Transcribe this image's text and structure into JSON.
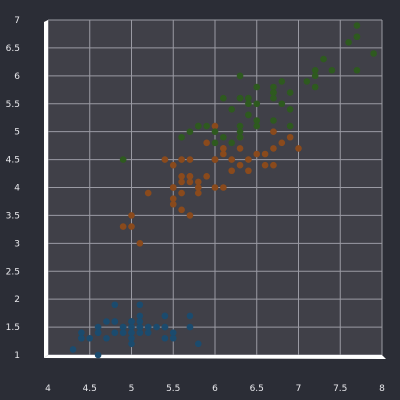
{
  "chart_data": {
    "type": "scatter",
    "title": "",
    "xlabel": "",
    "ylabel": "",
    "xlim": [
      4,
      8
    ],
    "ylim": [
      1,
      7
    ],
    "x_ticks": [
      4,
      4.5,
      5,
      5.5,
      6,
      6.5,
      7,
      7.5,
      8
    ],
    "x_tick_labels": [
      "4",
      "4.5",
      "5",
      "5.5",
      "6",
      "6.5",
      "7",
      "7.5",
      "8"
    ],
    "y_ticks": [
      1,
      1.5,
      2,
      2.5,
      3,
      3.5,
      4,
      4.5,
      5,
      5.5,
      6,
      6.5,
      7
    ],
    "y_tick_labels": [
      "1",
      "1.5",
      "2",
      "2.5",
      "3",
      "3.5",
      "4",
      "4.5",
      "5",
      "5.5",
      "6",
      "6.5",
      "7"
    ],
    "grid": true,
    "legend": "none",
    "colors": {
      "background": "#2b2d36",
      "plot_background": "#404048",
      "grid": "#9a9aa3",
      "axis": "#ffffff",
      "tick_text": "#e8e8ec"
    },
    "series": [
      {
        "color": "#1b4b6e",
        "points": [
          [
            5.1,
            1.4
          ],
          [
            4.9,
            1.4
          ],
          [
            4.7,
            1.3
          ],
          [
            4.6,
            1.5
          ],
          [
            5.0,
            1.4
          ],
          [
            5.4,
            1.7
          ],
          [
            4.6,
            1.4
          ],
          [
            5.0,
            1.5
          ],
          [
            4.4,
            1.4
          ],
          [
            4.9,
            1.5
          ],
          [
            5.4,
            1.5
          ],
          [
            4.8,
            1.6
          ],
          [
            4.8,
            1.4
          ],
          [
            4.3,
            1.1
          ],
          [
            5.8,
            1.2
          ],
          [
            5.7,
            1.5
          ],
          [
            5.4,
            1.3
          ],
          [
            5.1,
            1.4
          ],
          [
            5.7,
            1.7
          ],
          [
            5.1,
            1.5
          ],
          [
            5.4,
            1.7
          ],
          [
            5.1,
            1.5
          ],
          [
            4.6,
            1.0
          ],
          [
            5.1,
            1.7
          ],
          [
            4.8,
            1.9
          ],
          [
            5.0,
            1.6
          ],
          [
            5.0,
            1.6
          ],
          [
            5.2,
            1.5
          ],
          [
            5.2,
            1.4
          ],
          [
            4.7,
            1.6
          ],
          [
            4.8,
            1.6
          ],
          [
            5.4,
            1.5
          ],
          [
            5.2,
            1.5
          ],
          [
            5.5,
            1.4
          ],
          [
            4.9,
            1.5
          ],
          [
            5.0,
            1.2
          ],
          [
            5.5,
            1.3
          ],
          [
            4.9,
            1.4
          ],
          [
            4.4,
            1.3
          ],
          [
            5.1,
            1.5
          ],
          [
            5.0,
            1.3
          ],
          [
            4.5,
            1.3
          ],
          [
            4.4,
            1.3
          ],
          [
            5.0,
            1.6
          ],
          [
            5.1,
            1.9
          ],
          [
            4.8,
            1.4
          ],
          [
            5.1,
            1.6
          ],
          [
            4.6,
            1.4
          ],
          [
            5.3,
            1.5
          ],
          [
            5.0,
            1.4
          ]
        ]
      },
      {
        "color": "#8a4a1c",
        "points": [
          [
            7.0,
            4.7
          ],
          [
            6.4,
            4.5
          ],
          [
            6.9,
            4.9
          ],
          [
            5.5,
            4.0
          ],
          [
            6.5,
            4.6
          ],
          [
            5.7,
            4.5
          ],
          [
            6.3,
            4.7
          ],
          [
            4.9,
            3.3
          ],
          [
            6.6,
            4.6
          ],
          [
            5.2,
            3.9
          ],
          [
            5.0,
            3.5
          ],
          [
            5.9,
            4.2
          ],
          [
            6.0,
            4.0
          ],
          [
            6.1,
            4.7
          ],
          [
            5.6,
            3.6
          ],
          [
            6.7,
            4.4
          ],
          [
            5.6,
            4.5
          ],
          [
            5.8,
            4.1
          ],
          [
            6.2,
            4.5
          ],
          [
            5.6,
            3.9
          ],
          [
            5.9,
            4.8
          ],
          [
            6.1,
            4.0
          ],
          [
            6.3,
            4.9
          ],
          [
            6.1,
            4.7
          ],
          [
            6.4,
            4.3
          ],
          [
            6.6,
            4.4
          ],
          [
            6.8,
            4.8
          ],
          [
            6.7,
            5.0
          ],
          [
            6.0,
            4.5
          ],
          [
            5.7,
            3.5
          ],
          [
            5.5,
            3.8
          ],
          [
            5.5,
            3.7
          ],
          [
            5.8,
            3.9
          ],
          [
            6.0,
            5.1
          ],
          [
            5.4,
            4.5
          ],
          [
            6.0,
            4.5
          ],
          [
            6.7,
            4.7
          ],
          [
            6.3,
            4.4
          ],
          [
            5.6,
            4.1
          ],
          [
            5.5,
            4.0
          ],
          [
            5.5,
            4.4
          ],
          [
            6.1,
            4.6
          ],
          [
            5.8,
            4.0
          ],
          [
            5.0,
            3.3
          ],
          [
            5.6,
            4.2
          ],
          [
            5.7,
            4.2
          ],
          [
            5.7,
            4.2
          ],
          [
            6.2,
            4.3
          ],
          [
            5.1,
            3.0
          ],
          [
            5.7,
            4.1
          ]
        ]
      },
      {
        "color": "#2e5a1f",
        "points": [
          [
            6.3,
            6.0
          ],
          [
            5.8,
            5.1
          ],
          [
            7.1,
            5.9
          ],
          [
            6.3,
            5.6
          ],
          [
            6.5,
            5.8
          ],
          [
            7.6,
            6.6
          ],
          [
            4.9,
            4.5
          ],
          [
            7.3,
            6.3
          ],
          [
            6.7,
            5.8
          ],
          [
            7.2,
            6.1
          ],
          [
            6.5,
            5.1
          ],
          [
            6.4,
            5.3
          ],
          [
            6.8,
            5.5
          ],
          [
            5.7,
            5.0
          ],
          [
            5.8,
            5.1
          ],
          [
            6.4,
            5.3
          ],
          [
            6.5,
            5.5
          ],
          [
            7.7,
            6.7
          ],
          [
            7.7,
            6.9
          ],
          [
            6.0,
            5.0
          ],
          [
            6.9,
            5.7
          ],
          [
            5.6,
            4.9
          ],
          [
            7.7,
            6.7
          ],
          [
            6.3,
            4.9
          ],
          [
            6.7,
            5.7
          ],
          [
            7.2,
            6.0
          ],
          [
            6.2,
            4.8
          ],
          [
            6.1,
            4.9
          ],
          [
            6.4,
            5.6
          ],
          [
            7.2,
            5.8
          ],
          [
            7.4,
            6.1
          ],
          [
            7.9,
            6.4
          ],
          [
            6.4,
            5.6
          ],
          [
            6.3,
            5.1
          ],
          [
            6.1,
            5.6
          ],
          [
            7.7,
            6.1
          ],
          [
            6.3,
            5.6
          ],
          [
            6.4,
            5.5
          ],
          [
            6.0,
            4.8
          ],
          [
            6.9,
            5.4
          ],
          [
            6.7,
            5.6
          ],
          [
            6.9,
            5.1
          ],
          [
            6.8,
            5.9
          ],
          [
            6.7,
            5.7
          ],
          [
            6.7,
            5.2
          ],
          [
            6.3,
            5.0
          ],
          [
            6.5,
            5.2
          ],
          [
            6.2,
            5.4
          ],
          [
            5.9,
            5.1
          ]
        ]
      }
    ]
  }
}
